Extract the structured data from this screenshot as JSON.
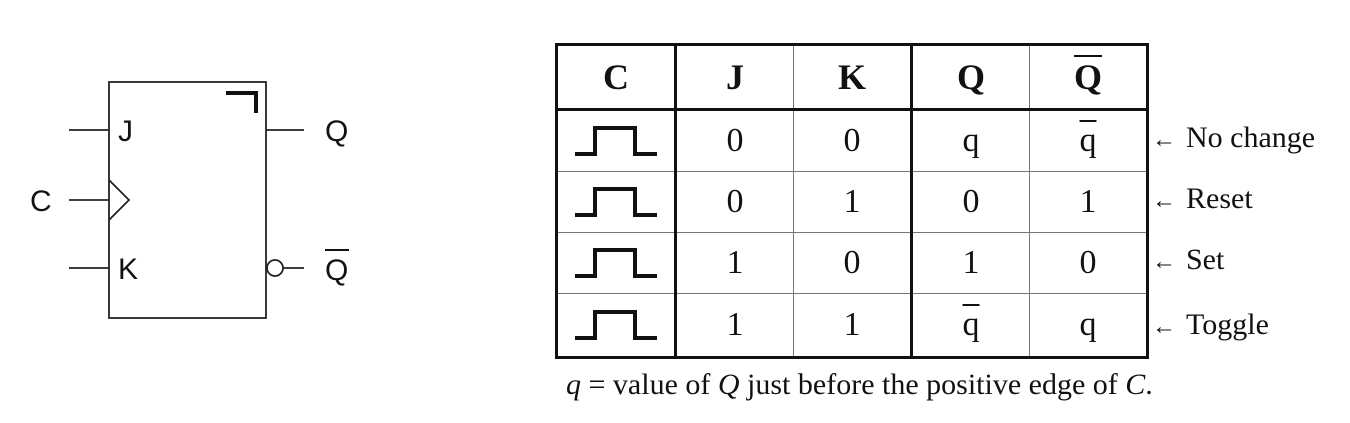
{
  "symbol": {
    "inputs": {
      "j": "J",
      "c": "C",
      "k": "K"
    },
    "outputs": {
      "q": "Q",
      "qbar": "Q"
    }
  },
  "table": {
    "headers": {
      "c": "C",
      "j": "J",
      "k": "K",
      "q": "Q",
      "qbar": "Q"
    },
    "rows": [
      {
        "j": "0",
        "k": "0",
        "q": "q",
        "qbar": "q",
        "note": "No change"
      },
      {
        "j": "0",
        "k": "1",
        "q": "0",
        "qbar": "1",
        "note": "Reset"
      },
      {
        "j": "1",
        "k": "0",
        "q": "1",
        "qbar": "0",
        "note": "Set"
      },
      {
        "j": "1",
        "k": "1",
        "q": "q",
        "qbar": "q",
        "note": "Toggle"
      }
    ],
    "note_arrow": "←"
  },
  "footnote": {
    "var": "q",
    "eq": " = value of ",
    "q": "Q",
    "mid": " just before the positive edge of ",
    "c": "C",
    "end": "."
  }
}
